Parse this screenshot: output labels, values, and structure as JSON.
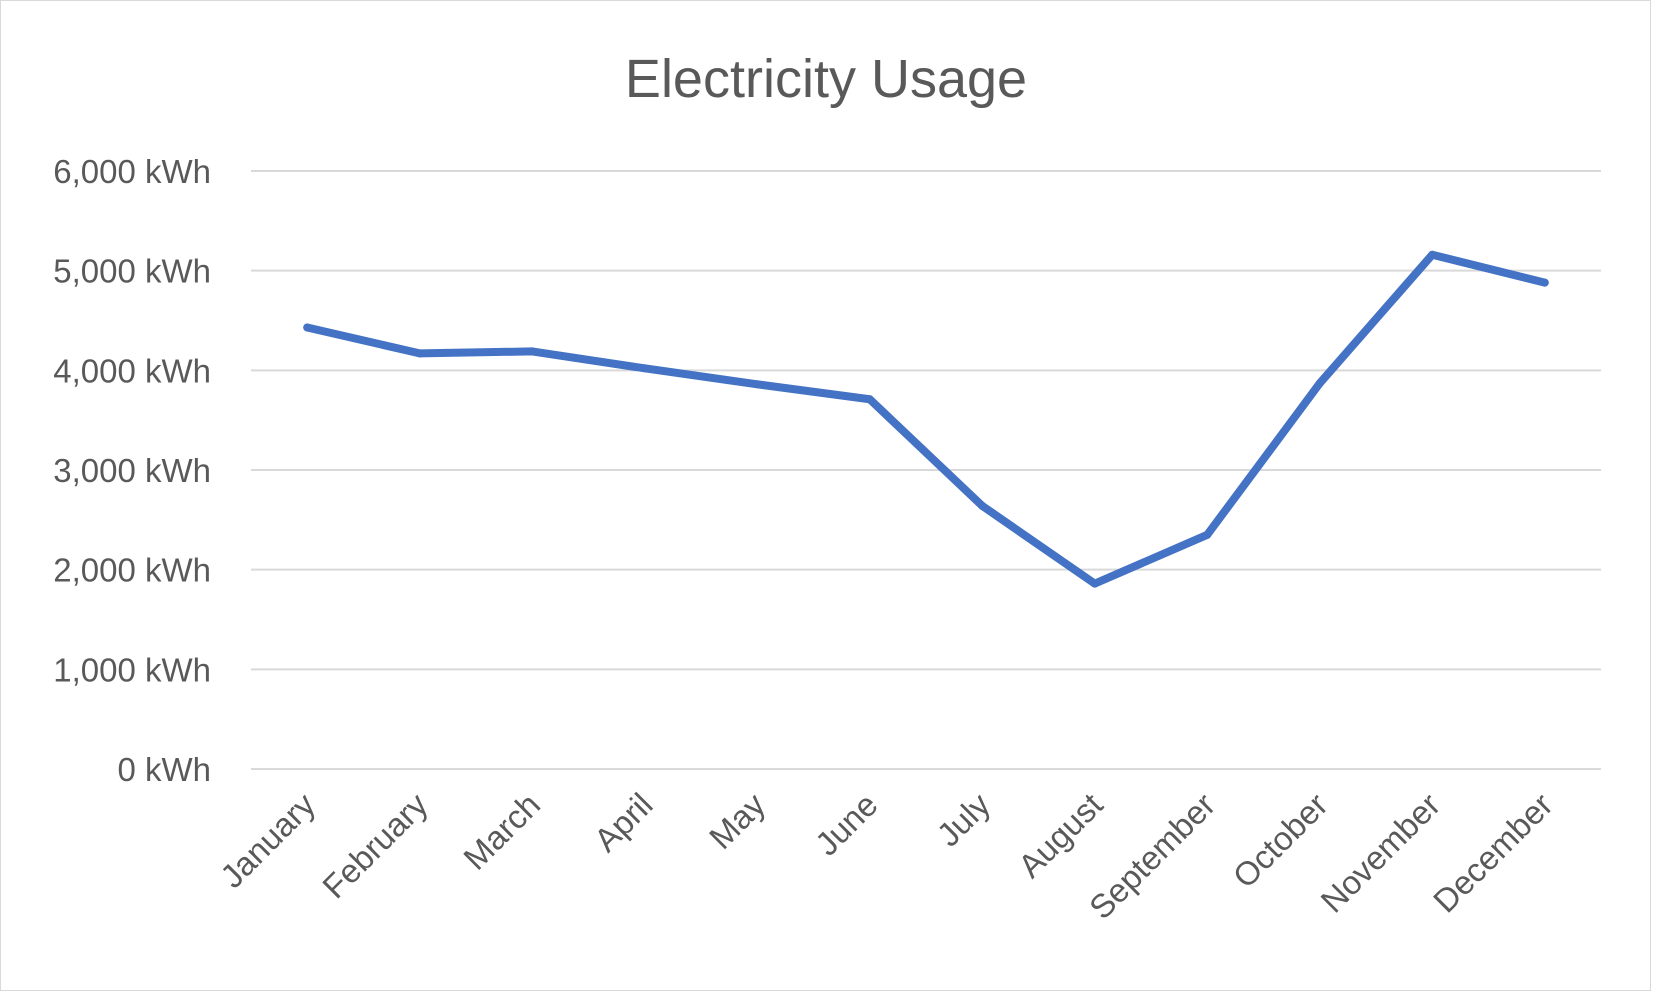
{
  "chart_data": {
    "type": "line",
    "title": "Electricity Usage",
    "xlabel": "",
    "ylabel": "",
    "categories": [
      "January",
      "February",
      "March",
      "April",
      "May",
      "June",
      "July",
      "August",
      "September",
      "October",
      "November",
      "December"
    ],
    "series": [
      {
        "values": [
          4430,
          4170,
          4190,
          4020,
          3860,
          3710,
          2640,
          1860,
          2350,
          3870,
          5160,
          4880
        ],
        "color": "#4472c4"
      }
    ],
    "ylim": [
      0,
      6000
    ],
    "yticks": [
      0,
      1000,
      2000,
      3000,
      4000,
      5000,
      6000
    ],
    "ytick_labels": [
      "0 kWh",
      "1,000 kWh",
      "2,000 kWh",
      "3,000 kWh",
      "4,000 kWh",
      "5,000 kWh",
      "6,000 kWh"
    ],
    "grid": true,
    "legend": "none"
  }
}
